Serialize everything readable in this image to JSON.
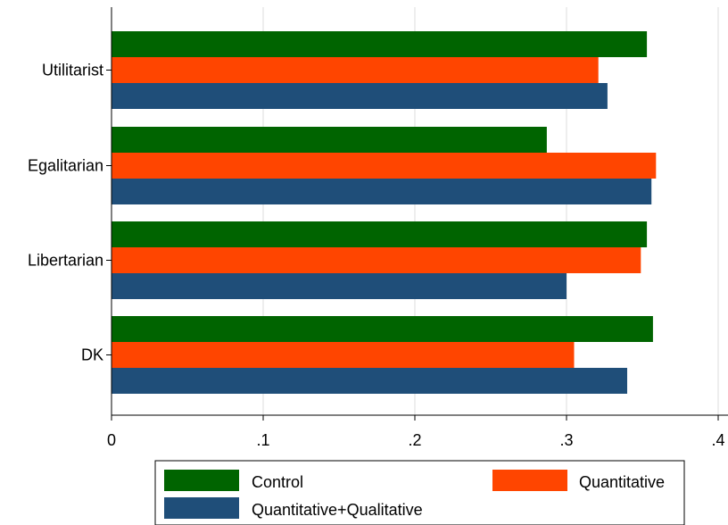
{
  "chart_data": {
    "type": "bar",
    "orientation": "horizontal",
    "categories": [
      "Utilitarist",
      "Egalitarian",
      "Libertarian",
      "DK"
    ],
    "series": [
      {
        "name": "Control",
        "color": "#006400",
        "values": [
          0.353,
          0.287,
          0.353,
          0.357
        ]
      },
      {
        "name": "Quantitative",
        "color": "#ff4500",
        "values": [
          0.321,
          0.359,
          0.349,
          0.305
        ]
      },
      {
        "name": "Quantitative+Qualitative",
        "color": "#1f4e79",
        "values": [
          0.327,
          0.356,
          0.3,
          0.34
        ]
      }
    ],
    "xticks": [
      {
        "value": 0,
        "label": "0"
      },
      {
        "value": 0.1,
        "label": ".1"
      },
      {
        "value": 0.2,
        "label": ".2"
      },
      {
        "value": 0.3,
        "label": ".3"
      },
      {
        "value": 0.4,
        "label": ".4"
      }
    ],
    "xlim": [
      0,
      0.4
    ],
    "grid": true,
    "legend_position": "bottom",
    "title": "",
    "xlabel": "",
    "ylabel": ""
  }
}
